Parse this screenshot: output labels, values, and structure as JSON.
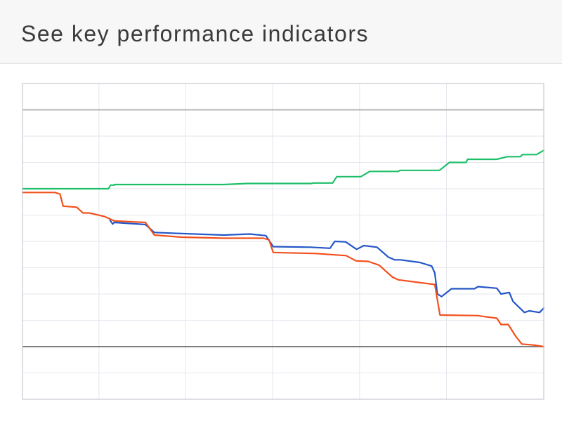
{
  "header": {
    "title": "See key performance indicators"
  },
  "colors": {
    "green": "#1fbf6a",
    "blue": "#2456c7",
    "orange": "#f2501d",
    "grid": "#e6e6ee",
    "frame": "#c9c9d3",
    "ref_line": "#b7b7b7",
    "zero_line": "#7d7d7d"
  },
  "chart_data": {
    "type": "line",
    "xlabel": "",
    "ylabel": "",
    "xlim": [
      0,
      100
    ],
    "ylim": [
      -1,
      5
    ],
    "grid": true,
    "legend": "none",
    "reference_lines": [
      {
        "y": 4.5,
        "style": "light"
      },
      {
        "y": 0,
        "style": "dark"
      }
    ],
    "series": [
      {
        "color": "green",
        "points": [
          [
            0,
            3
          ],
          [
            16.5,
            3
          ],
          [
            16.9,
            3.07
          ],
          [
            17.6,
            3.07
          ],
          [
            17.6,
            3.08
          ],
          [
            38.6,
            3.08
          ],
          [
            43.2,
            3.1
          ],
          [
            55.4,
            3.1
          ],
          [
            55.8,
            3.11
          ],
          [
            59.5,
            3.11
          ],
          [
            60.3,
            3.23
          ],
          [
            64.9,
            3.23
          ],
          [
            66.6,
            3.33
          ],
          [
            72.1,
            3.33
          ],
          [
            72.4,
            3.35
          ],
          [
            80.0,
            3.35
          ],
          [
            81.9,
            3.5
          ],
          [
            85.1,
            3.5
          ],
          [
            85.4,
            3.56
          ],
          [
            91.0,
            3.56
          ],
          [
            93.0,
            3.61
          ],
          [
            95.5,
            3.61
          ],
          [
            95.9,
            3.65
          ],
          [
            98.6,
            3.65
          ],
          [
            100,
            3.73
          ]
        ]
      },
      {
        "color": "blue",
        "points": [
          [
            16.8,
            2.4
          ],
          [
            17.3,
            2.33
          ],
          [
            17.6,
            2.36
          ],
          [
            23.6,
            2.32
          ],
          [
            25.3,
            2.17
          ],
          [
            30.5,
            2.15
          ],
          [
            38.6,
            2.12
          ],
          [
            43.6,
            2.14
          ],
          [
            46.7,
            2.11
          ],
          [
            48.1,
            1.9
          ],
          [
            55.3,
            1.89
          ],
          [
            59.0,
            1.87
          ],
          [
            59.9,
            2.0
          ],
          [
            62.0,
            1.99
          ],
          [
            64.1,
            1.85
          ],
          [
            65.5,
            1.92
          ],
          [
            68.0,
            1.89
          ],
          [
            70.2,
            1.7
          ],
          [
            71.4,
            1.65
          ],
          [
            72.5,
            1.65
          ],
          [
            76.2,
            1.6
          ],
          [
            78.5,
            1.53
          ],
          [
            79.1,
            1.4
          ],
          [
            79.6,
            1.0
          ],
          [
            80.4,
            0.95
          ],
          [
            82.3,
            1.1
          ],
          [
            86.7,
            1.1
          ],
          [
            87.4,
            1.14
          ],
          [
            91.0,
            1.11
          ],
          [
            91.8,
            1.0
          ],
          [
            93.4,
            1.03
          ],
          [
            94.1,
            0.86
          ],
          [
            96.3,
            0.65
          ],
          [
            97.2,
            0.68
          ],
          [
            99.2,
            0.65
          ],
          [
            100,
            0.73
          ]
        ]
      },
      {
        "color": "orange",
        "points": [
          [
            0,
            2.93
          ],
          [
            6.2,
            2.93
          ],
          [
            7.2,
            2.9
          ],
          [
            7.8,
            2.67
          ],
          [
            10.4,
            2.65
          ],
          [
            11.6,
            2.54
          ],
          [
            12.8,
            2.54
          ],
          [
            15.8,
            2.47
          ],
          [
            17.6,
            2.39
          ],
          [
            23.6,
            2.36
          ],
          [
            25.3,
            2.12
          ],
          [
            30.5,
            2.08
          ],
          [
            38.6,
            2.06
          ],
          [
            46.2,
            2.06
          ],
          [
            47.3,
            2.03
          ],
          [
            48.1,
            1.79
          ],
          [
            56.3,
            1.77
          ],
          [
            62.1,
            1.73
          ],
          [
            64.0,
            1.63
          ],
          [
            66.3,
            1.62
          ],
          [
            68.4,
            1.55
          ],
          [
            71.0,
            1.32
          ],
          [
            72.1,
            1.27
          ],
          [
            79.1,
            1.18
          ],
          [
            80.1,
            0.6
          ],
          [
            87.4,
            0.59
          ],
          [
            88.7,
            0.57
          ],
          [
            91.0,
            0.54
          ],
          [
            91.8,
            0.42
          ],
          [
            93.2,
            0.42
          ],
          [
            94.6,
            0.2
          ],
          [
            95.8,
            0.05
          ],
          [
            98.0,
            0.03
          ],
          [
            100,
            0.0
          ]
        ]
      }
    ]
  }
}
